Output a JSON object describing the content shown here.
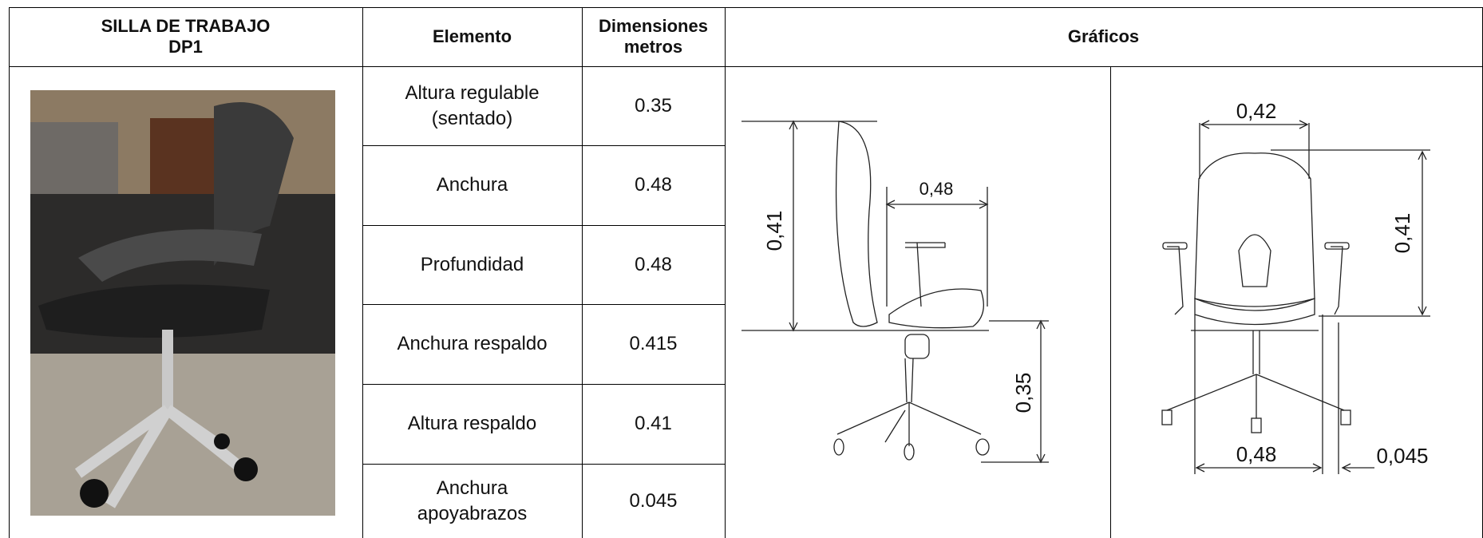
{
  "header": {
    "title_line1": "SILLA DE TRABAJO",
    "title_line2": "DP1",
    "element": "Elemento",
    "dimensions_line1": "Dimensiones",
    "dimensions_line2": "metros",
    "graphics": "Gráficos"
  },
  "table": {
    "rows": [
      [
        "Altura regulable (sentado)",
        "0.35"
      ],
      [
        "Anchura",
        "0.48"
      ],
      [
        "Profundidad",
        "0.48"
      ],
      [
        "Anchura respaldo",
        "0.415"
      ],
      [
        "Altura respaldo",
        "0.41"
      ],
      [
        "Anchura apoyabrazos",
        "0.045"
      ]
    ]
  },
  "side_view": {
    "backrest_height": "0,41",
    "seat_width": "0,48",
    "seat_height": "0,35"
  },
  "front_view": {
    "backrest_width": "0,42",
    "backrest_height": "0,41",
    "seat_width": "0,48",
    "armrest_width": "0,045"
  }
}
